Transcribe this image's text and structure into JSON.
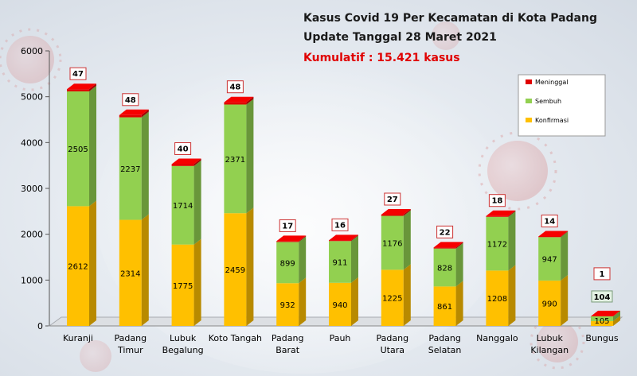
{
  "title_line1": "Kasus Covid 19 Per Kecamatan di Kota Padang",
  "title_line2": "Update Tanggal 28 Maret 2021",
  "cumulative": "Kumulatif : 15.421 kasus",
  "chart_data": {
    "type": "bar",
    "stacked": true,
    "categories": [
      [
        "Kuranji"
      ],
      [
        "Padang",
        "Timur"
      ],
      [
        "Lubuk",
        "Begalung"
      ],
      [
        "Koto Tangah"
      ],
      [
        "Padang",
        "Barat"
      ],
      [
        "Pauh"
      ],
      [
        "Padang",
        "Utara"
      ],
      [
        "Padang",
        "Selatan"
      ],
      [
        "Nanggalo"
      ],
      [
        "Lubuk",
        "Kilangan"
      ],
      [
        "Bungus"
      ]
    ],
    "series": [
      {
        "name": "Konfirmasi",
        "color": "#ffc000",
        "values": [
          2612,
          2314,
          1775,
          2459,
          932,
          940,
          1225,
          861,
          1208,
          990,
          105
        ]
      },
      {
        "name": "Sembuh",
        "color": "#92d050",
        "values": [
          2505,
          2237,
          1714,
          2371,
          899,
          911,
          1176,
          828,
          1172,
          947,
          104
        ]
      },
      {
        "name": "Meninggal",
        "color": "#e00000",
        "values": [
          47,
          48,
          40,
          48,
          17,
          16,
          27,
          22,
          18,
          14,
          1
        ]
      }
    ],
    "legend_order": [
      "Meninggal",
      "Sembuh",
      "Konfirmasi"
    ],
    "legend_position": "top-right",
    "ylim": [
      0,
      6000
    ],
    "yticks": [
      0,
      1000,
      2000,
      3000,
      4000,
      5000,
      6000
    ],
    "grid": false,
    "style": "3d-column"
  }
}
